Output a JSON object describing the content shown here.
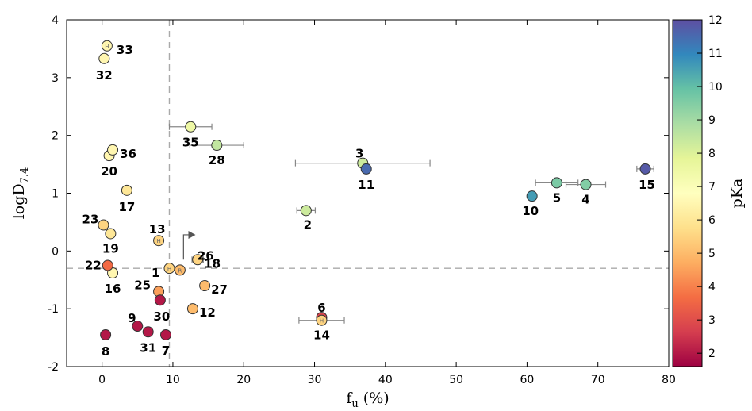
{
  "chart_data": {
    "type": "scatter",
    "xlabel": "f_u (%)",
    "ylabel": "logD_7.4",
    "xlim": [
      -5,
      80
    ],
    "ylim": [
      -2,
      4
    ],
    "xticks": [
      0,
      10,
      20,
      30,
      40,
      50,
      60,
      70,
      80
    ],
    "yticks": [
      -2,
      -1,
      0,
      1,
      2,
      3,
      4
    ],
    "reference_lines": {
      "x": 9.5,
      "y": -0.3
    },
    "colorbar": {
      "label": "pKa",
      "range": [
        1.6,
        12
      ],
      "ticks": [
        2,
        3,
        4,
        5,
        6,
        7,
        8,
        9,
        10,
        11,
        12
      ],
      "colors": [
        "#9e0142",
        "#d53e4f",
        "#f46d43",
        "#fdae61",
        "#fee08b",
        "#ffffbf",
        "#e6f598",
        "#abdda4",
        "#66c2a5",
        "#3288bd",
        "#5e4fa2"
      ]
    },
    "arrow_annotation": {
      "label": "26",
      "from": [
        11.5,
        -0.15
      ],
      "to": [
        13.2,
        0.28
      ]
    },
    "points": [
      {
        "label": "1",
        "x": 9.5,
        "y": -0.3,
        "pka": 5.5,
        "marker": "H"
      },
      {
        "label": "2",
        "x": 28.8,
        "y": 0.7,
        "pka": 8.3,
        "xerr": 1.3
      },
      {
        "label": "3",
        "x": 36.8,
        "y": 1.52,
        "pka": 8.3,
        "xerr": 9.5
      },
      {
        "label": "4",
        "x": 68.3,
        "y": 1.15,
        "pka": 9.5,
        "xerr": 2.8
      },
      {
        "label": "5",
        "x": 64.2,
        "y": 1.18,
        "pka": 9.6,
        "xerr": 3.0
      },
      {
        "label": "6",
        "x": 31.0,
        "y": -1.15,
        "pka": 2.8
      },
      {
        "label": "7",
        "x": 9.0,
        "y": -1.45,
        "pka": 2.0
      },
      {
        "label": "8",
        "x": 0.5,
        "y": -1.45,
        "pka": 2.0
      },
      {
        "label": "9",
        "x": 5.0,
        "y": -1.3,
        "pka": 2.0
      },
      {
        "label": "10",
        "x": 60.7,
        "y": 0.95,
        "pka": 10.6
      },
      {
        "label": "11",
        "x": 37.3,
        "y": 1.42,
        "pka": 11.5
      },
      {
        "label": "12",
        "x": 12.8,
        "y": -1.0,
        "pka": 5.0
      },
      {
        "label": "13",
        "x": 8.0,
        "y": 0.18,
        "pka": 5.5,
        "marker": "H"
      },
      {
        "label": "14",
        "x": 31.0,
        "y": -1.2,
        "pka": 5.5,
        "xerr": 3.2,
        "marker": "H"
      },
      {
        "label": "15",
        "x": 76.7,
        "y": 1.42,
        "pka": 11.8,
        "xerr": 1.2
      },
      {
        "label": "16",
        "x": 1.5,
        "y": -0.38,
        "pka": 6.5
      },
      {
        "label": "17",
        "x": 3.5,
        "y": 1.05,
        "pka": 6.0
      },
      {
        "label": "18",
        "x": 13.5,
        "y": -0.15,
        "pka": 5.5,
        "xerr": 0.8
      },
      {
        "label": "19",
        "x": 1.2,
        "y": 0.3,
        "pka": 6.0
      },
      {
        "label": "20",
        "x": 1.0,
        "y": 1.65,
        "pka": 6.5
      },
      {
        "label": "22",
        "x": 0.8,
        "y": -0.25,
        "pka": 3.6
      },
      {
        "label": "23",
        "x": 0.2,
        "y": 0.45,
        "pka": 5.5
      },
      {
        "label": "25",
        "x": 8.0,
        "y": -0.7,
        "pka": 4.5
      },
      {
        "label": "26",
        "x": 11.0,
        "y": -0.33,
        "pka": 5.0,
        "marker": "R"
      },
      {
        "label": "27",
        "x": 14.5,
        "y": -0.6,
        "pka": 5.0
      },
      {
        "label": "28",
        "x": 16.2,
        "y": 1.83,
        "pka": 8.5,
        "xerr": 3.8
      },
      {
        "label": "30",
        "x": 8.2,
        "y": -0.85,
        "pka": 2.0
      },
      {
        "label": "31",
        "x": 6.5,
        "y": -1.4,
        "pka": 2.0
      },
      {
        "label": "32",
        "x": 0.3,
        "y": 3.33,
        "pka": 6.5
      },
      {
        "label": "33",
        "x": 0.7,
        "y": 3.55,
        "pka": 6.5,
        "marker": "H"
      },
      {
        "label": "35",
        "x": 12.5,
        "y": 2.15,
        "pka": 7.5,
        "xerr": 3.0
      },
      {
        "label": "36",
        "x": 1.5,
        "y": 1.75,
        "pka": 6.5
      }
    ]
  }
}
